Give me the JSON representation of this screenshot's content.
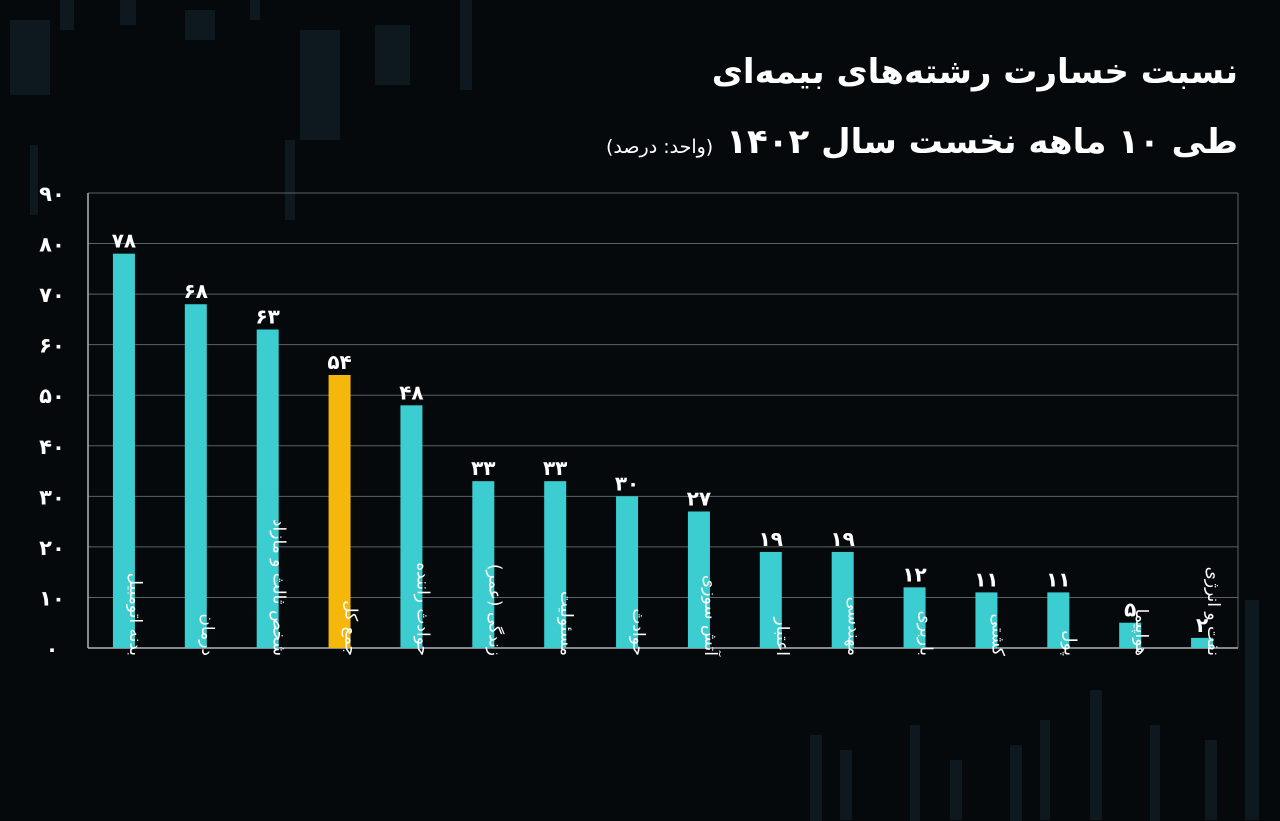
{
  "title": "نسبت خسارت رشته‌های بیمه‌ای",
  "subtitle": "طی ۱۰ ماهه نخست سال ۱۴۰۲",
  "unit": "(واحد: درصد)",
  "colors": {
    "bar": "#3ccdd0",
    "highlight": "#f5b80a",
    "background": "#05090c",
    "grid": "#5a6168",
    "text": "#ffffff"
  },
  "chart_data": {
    "type": "bar",
    "ylim": [
      0,
      90
    ],
    "yticks": [
      "۰",
      "۱۰",
      "۲۰",
      "۳۰",
      "۴۰",
      "۵۰",
      "۶۰",
      "۷۰",
      "۸۰",
      "۹۰"
    ],
    "ytick_values": [
      0,
      10,
      20,
      30,
      40,
      50,
      60,
      70,
      80,
      90
    ],
    "grid": true,
    "categories": [
      "بدنه اتومبیل",
      "درمان",
      "شخص ثالث و مازاد",
      "جمع کل",
      "حوادث راننده",
      "زندگی (عمر)",
      "مسئولیت",
      "حوادث",
      "آتش سوزی",
      "اعتبار",
      "مهندسی",
      "باربری",
      "کشتی",
      "پول",
      "هواپیما",
      "نفت و انرژی"
    ],
    "values": [
      78,
      68,
      63,
      54,
      48,
      33,
      33,
      30,
      27,
      19,
      19,
      12,
      11,
      11,
      5,
      2
    ],
    "value_labels": [
      "۷۸",
      "۶۸",
      "۶۳",
      "۵۴",
      "۴۸",
      "۳۳",
      "۳۳",
      "۳۰",
      "۲۷",
      "۱۹",
      "۱۹",
      "۱۲",
      "۱۱",
      "۱۱",
      "۵",
      "۲"
    ],
    "highlight_category": "جمع کل"
  }
}
